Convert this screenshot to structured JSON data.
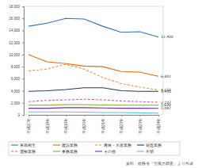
{
  "chart_data": {
    "type": "line",
    "categories": [
      "平成17年",
      "平成18年",
      "平成19年",
      "平成20年",
      "平成21年",
      "平成22年",
      "平成23年",
      "平成24年"
    ],
    "ylim": [
      0,
      18000
    ],
    "yticks": [
      0,
      {
        "value": 2000,
        "label": "2,000"
      },
      {
        "value": 4000,
        "label": "4,000"
      },
      {
        "value": 6000,
        "label": "6,000"
      },
      {
        "value": 8000,
        "label": "8,000"
      },
      {
        "value": 10000,
        "label": "10,000"
      },
      {
        "value": 12000,
        "label": "12,000"
      },
      {
        "value": 14000,
        "label": "14,000"
      },
      {
        "value": 16000,
        "label": "16,000"
      },
      {
        "value": 18000,
        "label": "18,000"
      }
    ],
    "grid": false,
    "legend": "bottom",
    "series": [
      {
        "name": "車両相互",
        "color": "#2e75b6",
        "line_style": "solid",
        "values": [
          14700,
          15200,
          16000,
          15900,
          14700,
          13700,
          13800,
          12900
        ],
        "value_labels": [
          null,
          null,
          null,
          null,
          null,
          null,
          null,
          "12,900"
        ]
      },
      {
        "name": "建設業務",
        "color": "#e46c0a",
        "line_style": "solid",
        "values": [
          10000,
          8800,
          8500,
          8100,
          8000,
          7200,
          7100,
          6402
        ],
        "value_labels": [
          null,
          null,
          null,
          null,
          null,
          null,
          null,
          "6,402"
        ]
      },
      {
        "name": "農林・水産業務",
        "color": "#f08c3c",
        "line_style": "dashed",
        "values": [
          7300,
          7600,
          8400,
          7600,
          6200,
          5200,
          4600,
          4150
        ],
        "value_labels": [
          null,
          null,
          null,
          null,
          null,
          null,
          null,
          "4,150"
        ]
      },
      {
        "name": "製造業務",
        "color": "#1f3864",
        "line_style": "solid",
        "values": [
          3900,
          4000,
          4200,
          4500,
          4500,
          4000,
          3900,
          3900
        ],
        "value_labels": [
          null,
          null,
          null,
          null,
          null,
          null,
          null,
          "3,900"
        ]
      },
      {
        "name": "運輸業務",
        "color": "#e05a8a",
        "line_style": "dashed",
        "values": [
          2200,
          2400,
          2500,
          2600,
          2500,
          2300,
          2200,
          2107
        ],
        "value_labels": [
          null,
          null,
          null,
          null,
          null,
          null,
          null,
          "2,107"
        ]
      },
      {
        "name": "事務業務",
        "color": "#70ad47",
        "line_style": "solid",
        "values": [
          1600,
          1600,
          1700,
          1700,
          1650,
          1600,
          1600,
          1600
        ],
        "value_labels": [
          null,
          null,
          null,
          null,
          null,
          null,
          null,
          "1,600"
        ]
      },
      {
        "name": "その他",
        "color": "#7030a0",
        "line_style": "solid",
        "values": [
          1100,
          1100,
          1200,
          1200,
          1150,
          1100,
          1100,
          1087
        ],
        "value_labels": [
          null,
          null,
          null,
          null,
          null,
          null,
          null,
          "1,087"
        ]
      },
      {
        "name": "不明",
        "color": "#5bc0de",
        "line_style": "solid",
        "values": [
          500,
          500,
          500,
          450,
          400,
          400,
          350,
          300
        ]
      }
    ],
    "source": "資料：総務省「労働力調査」より作成"
  }
}
